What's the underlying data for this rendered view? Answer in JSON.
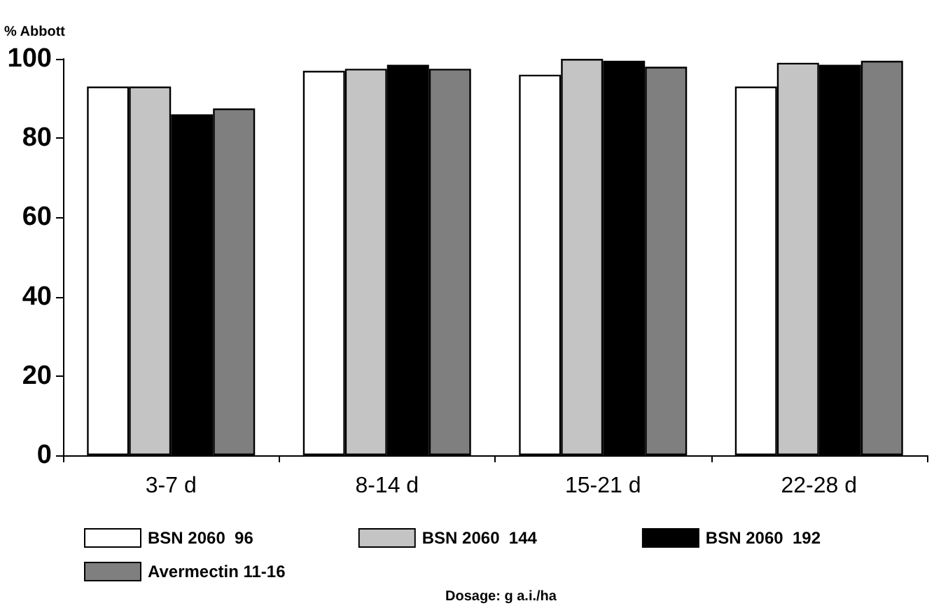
{
  "chart_data": {
    "type": "bar",
    "ylabel": "% Abbott",
    "categories": [
      "3-7 d",
      "8-14 d",
      "15-21 d",
      "22-28 d"
    ],
    "series": [
      {
        "name": "BSN 2060  96",
        "color": "#ffffff",
        "values": [
          93,
          97,
          96,
          93
        ]
      },
      {
        "name": "BSN 2060  144",
        "color": "#c4c4c4",
        "values": [
          93,
          97.5,
          100,
          99
        ]
      },
      {
        "name": "BSN 2060  192",
        "color": "#000000",
        "values": [
          86,
          98.5,
          99.5,
          98.5
        ]
      },
      {
        "name": "Avermectin 11-16",
        "color": "#7f7f7f",
        "values": [
          87.5,
          97.5,
          98,
          99.5
        ]
      }
    ],
    "ylim": [
      0,
      100
    ],
    "yticks": [
      0,
      20,
      40,
      60,
      80,
      100
    ],
    "grid": false,
    "legend": "bottom",
    "annotations": [
      "Dosage: g a.i./ha"
    ]
  }
}
